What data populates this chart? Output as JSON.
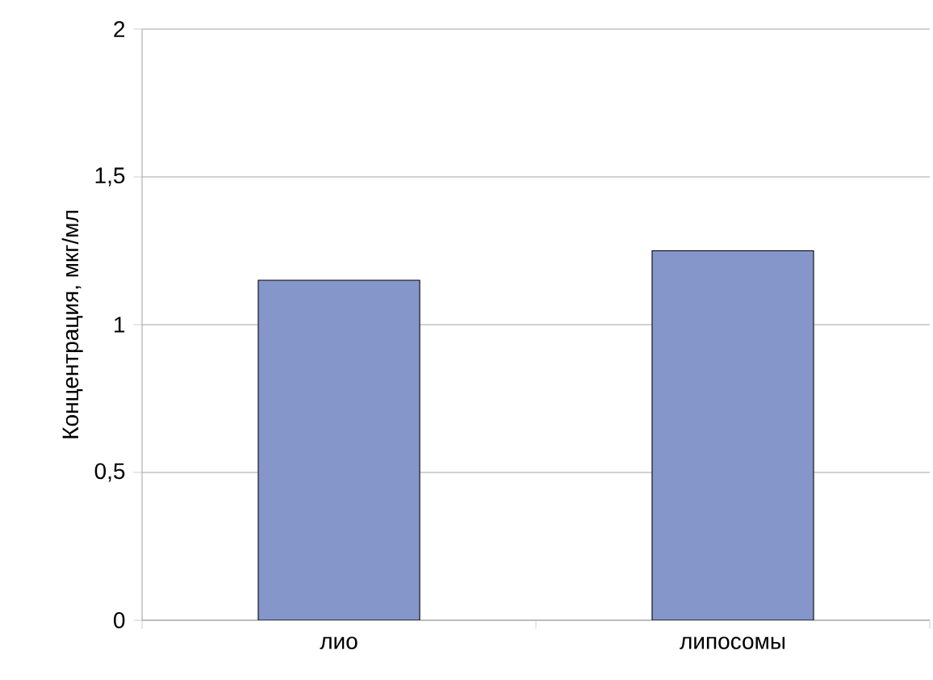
{
  "chart_data": {
    "type": "bar",
    "ylabel": "Концентрация, мкг/мл",
    "categories": [
      "лио",
      "липосомы"
    ],
    "values": [
      1.15,
      1.25
    ],
    "color": "#8596cb",
    "ylim": [
      0,
      2
    ],
    "yticks": [
      0,
      {
        "value": 0.5,
        "label": "0,5"
      },
      1,
      {
        "value": 1.5,
        "label": "1,5"
      },
      2
    ],
    "grid": "y"
  }
}
